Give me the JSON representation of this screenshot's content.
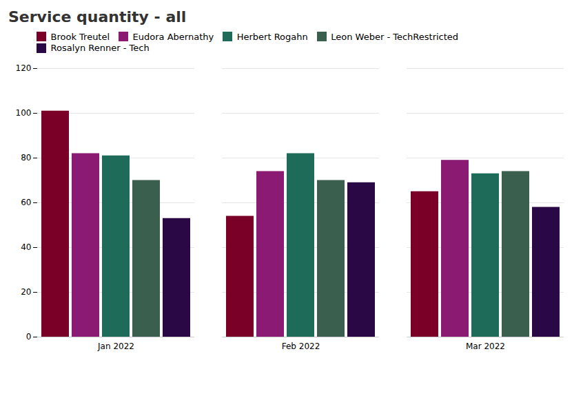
{
  "chart_data": {
    "type": "bar",
    "title": "Service quantity - all",
    "categories": [
      "Jan 2022",
      "Feb 2022",
      "Mar 2022"
    ],
    "series": [
      {
        "name": "Brook Treutel",
        "color": "#7B0028",
        "values": [
          101,
          54,
          65
        ]
      },
      {
        "name": "Eudora Abernathy",
        "color": "#8B1A72",
        "values": [
          82,
          74,
          79
        ]
      },
      {
        "name": "Herbert Rogahn",
        "color": "#1F6B5A",
        "values": [
          81,
          82,
          73
        ]
      },
      {
        "name": "Leon Weber - TechRestricted",
        "color": "#3A5F4F",
        "values": [
          70,
          70,
          74
        ]
      },
      {
        "name": "Rosalyn Renner - Tech",
        "color": "#2A0845",
        "values": [
          53,
          69,
          58
        ]
      }
    ],
    "ylim": [
      0,
      120
    ],
    "yticks": [
      0,
      20,
      40,
      60,
      80,
      100,
      120
    ],
    "grid": true,
    "legend": "top"
  }
}
